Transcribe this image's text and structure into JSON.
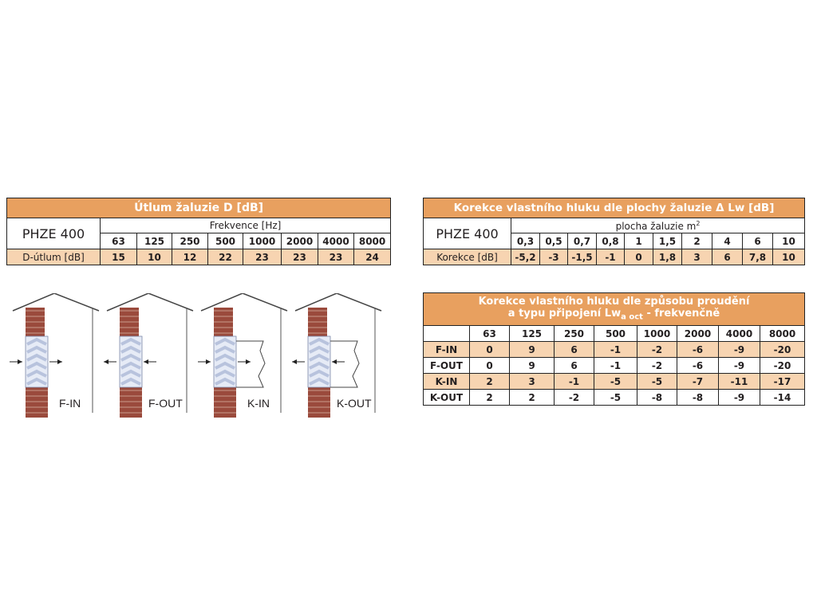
{
  "attenuation_table": {
    "title": "Útlum žaluzie D [dB]",
    "model": "PHZE 400",
    "freq_label": "Frekvence [Hz]",
    "frequencies": [
      "63",
      "125",
      "250",
      "500",
      "1000",
      "2000",
      "4000",
      "8000"
    ],
    "row_label": "D-útlum [dB]",
    "values": [
      "15",
      "10",
      "12",
      "22",
      "23",
      "23",
      "23",
      "24"
    ]
  },
  "area_correction_table": {
    "title": "Korekce vlastního hluku dle plochy žaluzie Δ Lw [dB]",
    "model": "PHZE 400",
    "area_label": "plocha žaluzie m",
    "area_label_sup": "2",
    "areas": [
      "0,3",
      "0,5",
      "0,7",
      "0,8",
      "1",
      "1,5",
      "2",
      "4",
      "6",
      "10"
    ],
    "row_label": "Korekce [dB]",
    "values": [
      "-5,2",
      "-3",
      "-1,5",
      "-1",
      "0",
      "1,8",
      "3",
      "6",
      "7,8",
      "10"
    ]
  },
  "flow_correction_table": {
    "title_line1": "Korekce vlastního hluku dle způsobu proudění",
    "title_line2_pre": "a typu připojení",
    "title_lw": "Lw",
    "title_sub": "a oct",
    "title_line2_post": "- frekvenčně",
    "frequencies": [
      "63",
      "125",
      "250",
      "500",
      "1000",
      "2000",
      "4000",
      "8000"
    ],
    "rows": [
      {
        "label": "F-IN",
        "values": [
          "0",
          "9",
          "6",
          "-1",
          "-2",
          "-6",
          "-9",
          "-20"
        ]
      },
      {
        "label": "F-OUT",
        "values": [
          "0",
          "9",
          "6",
          "-1",
          "-2",
          "-6",
          "-9",
          "-20"
        ]
      },
      {
        "label": "K-IN",
        "values": [
          "2",
          "3",
          "-1",
          "-5",
          "-5",
          "-7",
          "-11",
          "-17"
        ]
      },
      {
        "label": "K-OUT",
        "values": [
          "2",
          "2",
          "-2",
          "-5",
          "-8",
          "-8",
          "-9",
          "-14"
        ]
      }
    ]
  },
  "diagrams": [
    {
      "label": "F-IN",
      "duct": false,
      "arrows": "in"
    },
    {
      "label": "F-OUT",
      "duct": false,
      "arrows": "out"
    },
    {
      "label": "K-IN",
      "duct": true,
      "arrows": "in"
    },
    {
      "label": "K-OUT",
      "duct": true,
      "arrows": "out"
    }
  ],
  "colors": {
    "header": "#e8a05f",
    "row_highlight": "#f7d4b1",
    "brick": "#9a4a3c",
    "louver": "#b8c3dd"
  }
}
